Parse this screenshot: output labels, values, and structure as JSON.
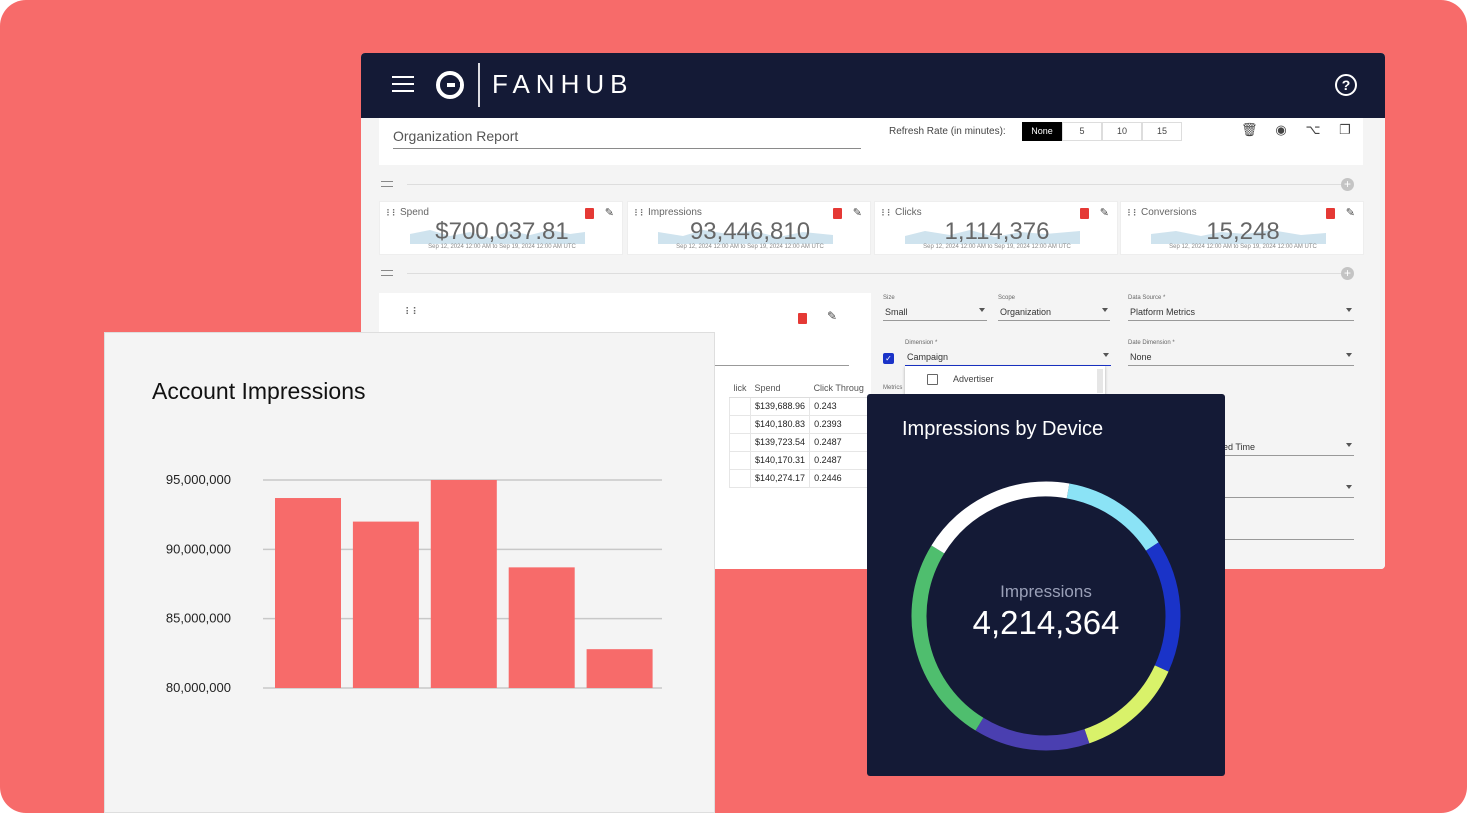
{
  "app": {
    "brand": "FANHUB",
    "help_icon": "help-circle-icon",
    "report_title": "Organization Report",
    "refresh_label": "Refresh Rate (in minutes):",
    "refresh_options": [
      "None",
      "5",
      "10",
      "15"
    ],
    "refresh_selected": "None",
    "toolbar_icons": [
      "trash-icon",
      "eye-icon",
      "share-icon",
      "copy-icon"
    ]
  },
  "kpis": [
    {
      "label": "Spend",
      "value": "$700,037.81",
      "range": "Sep 12, 2024 12:00 AM to Sep 19, 2024 12:00 AM UTC"
    },
    {
      "label": "Impressions",
      "value": "93,446,810",
      "range": "Sep 12, 2024 12:00 AM to Sep 19, 2024 12:00 AM UTC"
    },
    {
      "label": "Clicks",
      "value": "1,114,376",
      "range": "Sep 12, 2024 12:00 AM to Sep 19, 2024 12:00 AM UTC"
    },
    {
      "label": "Conversions",
      "value": "15,248",
      "range": "Sep 12, 2024 12:00 AM to Sep 19, 2024 12:00 AM UTC"
    }
  ],
  "table": {
    "headers": [
      "lick",
      "Spend",
      "Click Throug"
    ],
    "rows": [
      [
        "",
        "$139,688.96",
        "0.243"
      ],
      [
        "",
        "$140,180.83",
        "0.2393"
      ],
      [
        "",
        "$139,723.54",
        "0.2487"
      ],
      [
        "",
        "$140,170.31",
        "0.2487"
      ],
      [
        "",
        "$140,274.17",
        "0.2446"
      ]
    ]
  },
  "config": {
    "size_label": "Size",
    "size_value": "Small",
    "scope_label": "Scope",
    "scope_value": "Organization",
    "datasource_label": "Data Source *",
    "datasource_value": "Platform Metrics",
    "dimension_label": "Dimension *",
    "dimension_value": "Campaign",
    "date_dimension_label": "Date Dimension *",
    "date_dimension_value": "None",
    "metrics_label": "Metrics",
    "dropdown_item": "Advertiser",
    "partial_field": "ed Time"
  },
  "account_card": {
    "title": "Account Impressions"
  },
  "device_card": {
    "title": "Impressions by Device",
    "center_label": "Impressions",
    "center_value": "4,214,364"
  },
  "chart_data": [
    {
      "type": "bar",
      "title": "Account Impressions",
      "categories": [
        "",
        "",
        "",
        "",
        ""
      ],
      "values": [
        93700000,
        92000000,
        95000000,
        88700000,
        82800000
      ],
      "ylim": [
        80000000,
        95000000
      ],
      "yticks": [
        "95,000,000",
        "90,000,000",
        "85,000,000",
        "80,000,000"
      ],
      "ytick_values": [
        95000000,
        90000000,
        85000000,
        80000000
      ],
      "grid": true,
      "color": "#f76b6a"
    },
    {
      "type": "pie",
      "title": "Impressions by Device",
      "values": [
        0.13,
        0.16,
        0.13,
        0.14,
        0.25,
        0.19
      ],
      "colors": [
        "#8be3f6",
        "#1a33c8",
        "#d9f26a",
        "#4a3fb0",
        "#4fbe6e",
        "#ffffff"
      ],
      "center_value": "4,214,364"
    }
  ]
}
